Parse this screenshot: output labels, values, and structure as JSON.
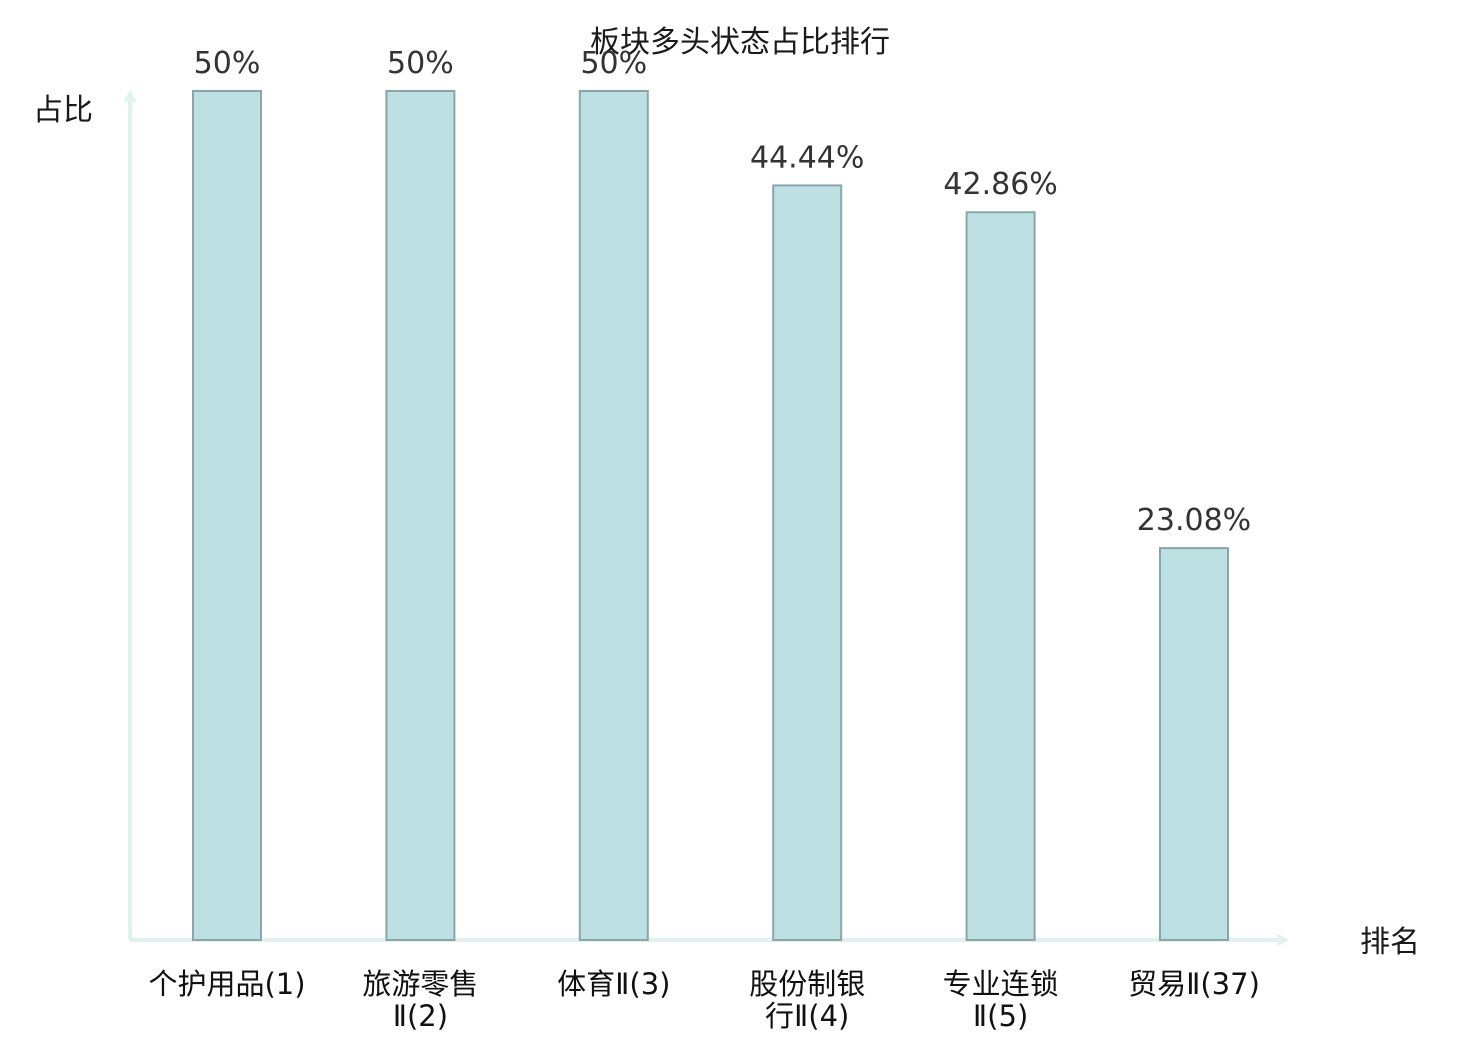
{
  "chart_data": {
    "type": "bar",
    "title": "板块多头状态占比排行",
    "ylabel": "占比",
    "xlabel": "排名",
    "ylim": [
      0,
      50
    ],
    "grid": false,
    "categories": [
      [
        "个护用品(1)"
      ],
      [
        "旅游零售",
        "Ⅱ(2)"
      ],
      [
        "体育Ⅱ(3)"
      ],
      [
        "股份制银",
        "行Ⅱ(4)"
      ],
      [
        "专业连锁",
        "Ⅱ(5)"
      ],
      [
        "贸易Ⅱ(37)"
      ]
    ],
    "values": [
      50,
      50,
      50,
      44.44,
      42.86,
      23.08
    ],
    "value_labels": [
      "50%",
      "50%",
      "50%",
      "44.44%",
      "42.86%",
      "23.08%"
    ],
    "highlight_index": 5,
    "colors": {
      "bar_fill": "#bde0e3",
      "bar_stroke": "#8aa6ab",
      "axis": "#dff2ef",
      "highlight_text": "#e02020",
      "text": "#1a1a1a"
    }
  }
}
